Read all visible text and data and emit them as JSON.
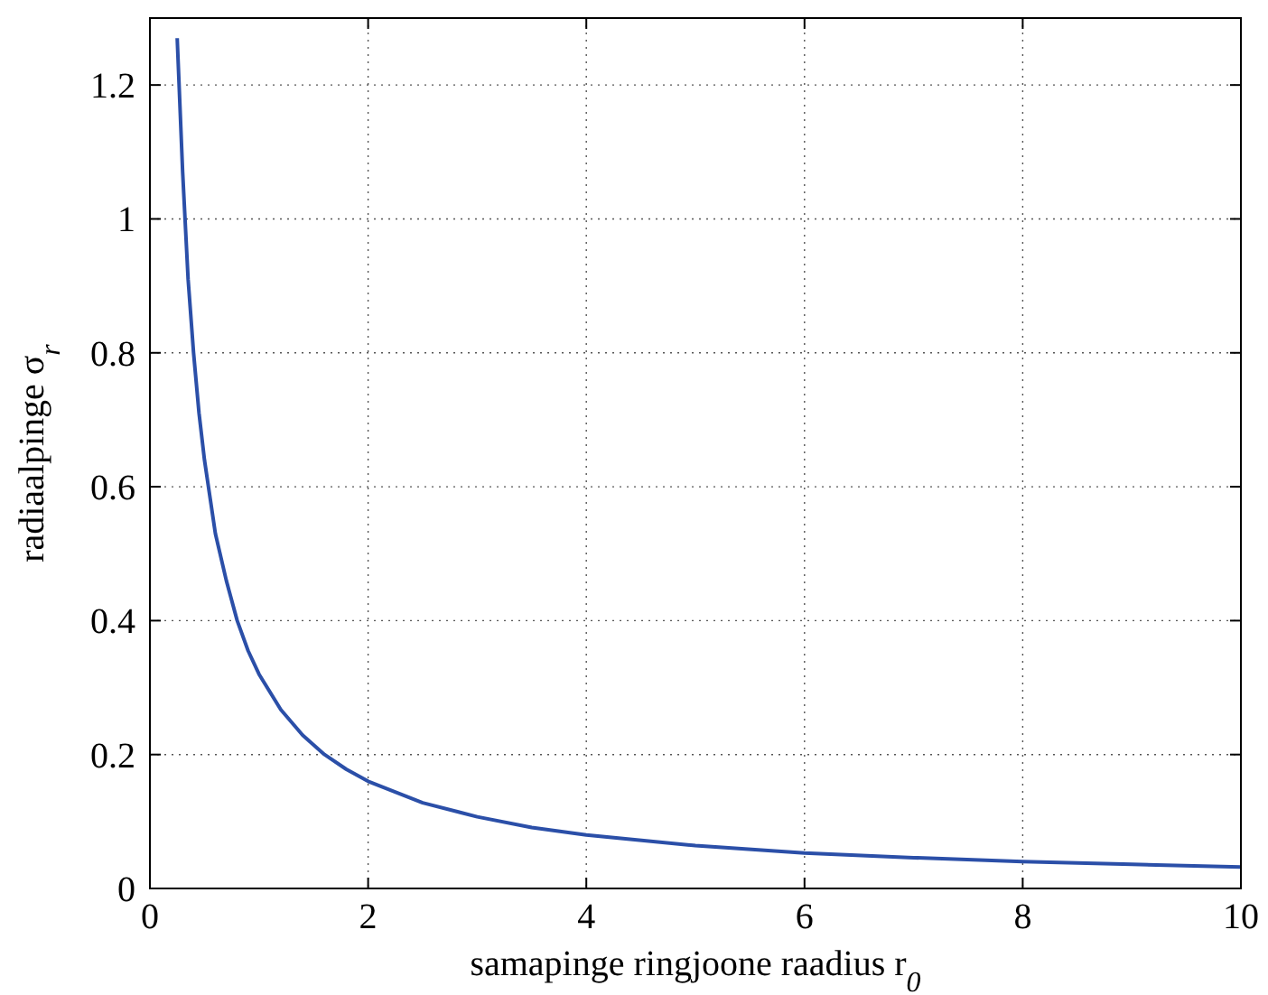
{
  "chart_data": {
    "type": "line",
    "xlabel": "samapinge ringjoone raadius  r$_{0}$",
    "ylabel": "radiaalpinge   σ$_{r}$",
    "x": [
      0.25,
      0.3,
      0.35,
      0.4,
      0.45,
      0.5,
      0.6,
      0.7,
      0.8,
      0.9,
      1,
      1.2,
      1.4,
      1.6,
      1.8,
      2,
      2.5,
      3,
      3.5,
      4,
      5,
      6,
      7,
      8,
      9,
      10
    ],
    "series": [
      {
        "color": "#2b4fa8",
        "values": [
          1.27,
          1.07,
          0.91,
          0.8,
          0.71,
          0.64,
          0.53,
          0.46,
          0.4,
          0.355,
          0.32,
          0.267,
          0.229,
          0.2,
          0.178,
          0.16,
          0.128,
          0.107,
          0.091,
          0.08,
          0.064,
          0.053,
          0.046,
          0.04,
          0.036,
          0.032
        ]
      }
    ],
    "xlim": [
      0,
      10
    ],
    "xticks": [
      0,
      2,
      4,
      6,
      8,
      10
    ],
    "ylim": [
      0,
      1.3
    ],
    "yticks": [
      0,
      0.2,
      0.4,
      0.6,
      0.8,
      1,
      1.2
    ],
    "grid": true,
    "line_style": "solid"
  }
}
